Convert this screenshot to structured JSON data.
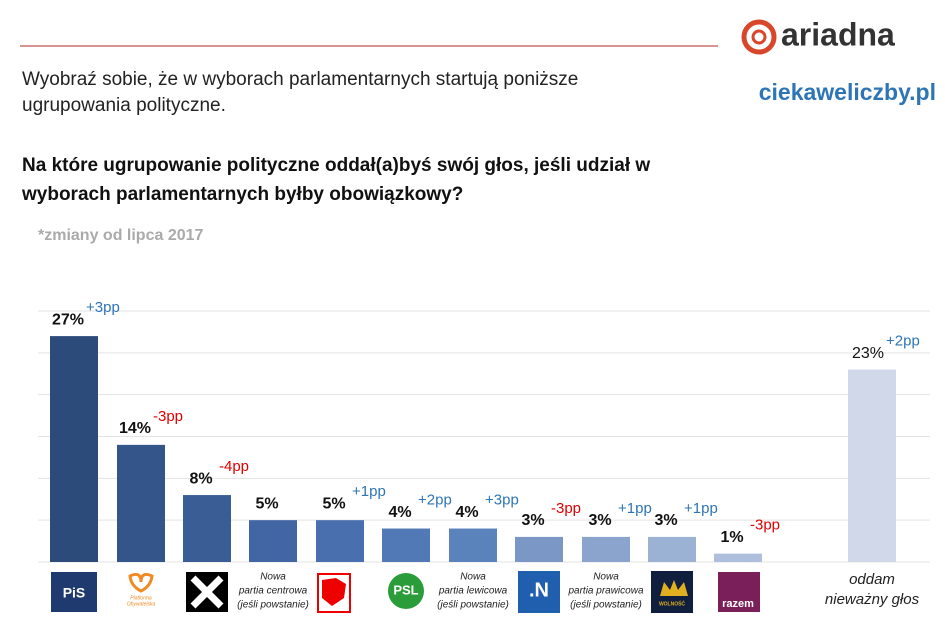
{
  "brand": "ariadna",
  "site": "ciekaweliczby.pl",
  "intro": [
    "Wyobraź sobie, że w wyborach parlamentarnych startują poniższe",
    "ugrupowania polityczne."
  ],
  "question": [
    "Na które ugrupowanie polityczne oddał(a)byś swój głos, jeśli udział w",
    "wyborach parlamentarnych byłby obowiązkowy?"
  ],
  "note": "*zmiany od lipca 2017",
  "chart_data": {
    "type": "bar",
    "categories": [
      "PiS",
      [
        "Platforma",
        "Obywatelska"
      ],
      null,
      [
        "Nowa",
        "partia centrowa",
        "(jeśli powstanie)"
      ],
      null,
      "PSL",
      [
        "Nowa",
        "partia lewicowa",
        "(jeśli powstanie)"
      ],
      ".N",
      [
        "Nowa",
        "partia prawicowa",
        "(jeśli powstanie)"
      ],
      "WOLNOŚĆ",
      "razem",
      [
        "oddam",
        "nieważny głos"
      ]
    ],
    "values": [
      27,
      14,
      8,
      5,
      5,
      4,
      4,
      3,
      3,
      3,
      1,
      23
    ],
    "value_labels": [
      "27%",
      "14%",
      "8%",
      "5%",
      "5%",
      "4%",
      "4%",
      "3%",
      "3%",
      "3%",
      "1%",
      "23%"
    ],
    "changes": [
      {
        "value": 3,
        "label": "+3pp"
      },
      {
        "value": -3,
        "label": "-3pp"
      },
      {
        "value": -4,
        "label": "-4pp"
      },
      null,
      {
        "value": 1,
        "label": "+1pp"
      },
      {
        "value": 2,
        "label": "+2pp"
      },
      {
        "value": 3,
        "label": "+3pp"
      },
      {
        "value": -3,
        "label": "-3pp"
      },
      {
        "value": 1,
        "label": "+1pp"
      },
      {
        "value": 1,
        "label": "+1pp"
      },
      {
        "value": -3,
        "label": "-3pp"
      },
      {
        "value": 2,
        "label": "+2pp"
      }
    ],
    "colors": [
      "#2d4b7a",
      "#34558a",
      "#3a5d96",
      "#4266a3",
      "#4a6fae",
      "#5079b5",
      "#5a82bb",
      "#7a97c6",
      "#8aa4cd",
      "#9cb2d4",
      "#aebfdd",
      "#d0d8ea"
    ],
    "positive_color": "#2e75b6",
    "negative_color": "#e00000",
    "ylim": [
      0,
      30
    ],
    "yticks": [
      0,
      5,
      10,
      15,
      20,
      25,
      30
    ],
    "grid": true
  }
}
